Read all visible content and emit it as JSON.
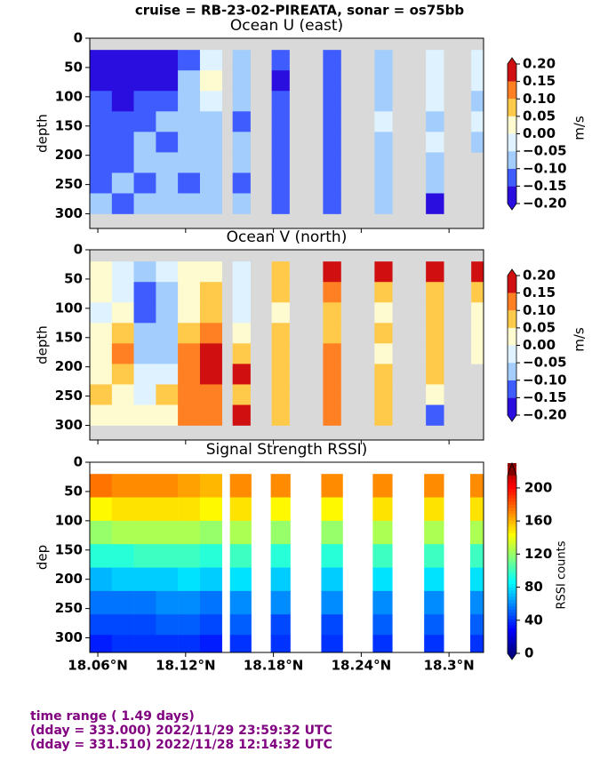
{
  "title": "cruise = RB-23-02-PIREATA,  sonar = os75bb",
  "footer": [
    "time range ( 1.49 days)",
    "(dday = 333.000) 2022/11/29 23:59:32 UTC",
    "(dday = 331.510) 2022/11/28 12:14:32 UTC"
  ],
  "chart_data": [
    {
      "type": "contour",
      "title": "Ocean U (east)",
      "ylabel": "depth",
      "colorbar_label": "m/s",
      "xlim": [
        18.0545,
        18.3236
      ],
      "xticks": [
        18.06,
        18.12,
        18.18,
        18.24,
        18.3
      ],
      "xtick_labels": false,
      "ylim": [
        0,
        325
      ],
      "y_inverted": true,
      "yticks": [
        0,
        50,
        100,
        150,
        200,
        250,
        300
      ],
      "nan_color": "#d9d9d9",
      "levels": [
        -0.2,
        -0.15,
        -0.1,
        -0.05,
        0,
        0.05,
        0.1,
        0.15,
        0.2
      ],
      "colors": [
        "#2a0ee0",
        "#3f5cff",
        "#a3cdfc",
        "#dff2ff",
        "#fffbd0",
        "#ffc94a",
        "#ff8022",
        "#d01010"
      ],
      "cticks": [
        {
          "value": -0.2,
          "label": "−0.20"
        },
        {
          "value": -0.15,
          "label": "−0.15"
        },
        {
          "value": -0.1,
          "label": "−0.10"
        },
        {
          "value": -0.05,
          "label": "−0.05"
        },
        {
          "value": 0,
          "label": "0.00"
        },
        {
          "value": 0.05,
          "label": "0.05"
        },
        {
          "value": 0.1,
          "label": "0.10"
        },
        {
          "value": 0.15,
          "label": "0.15"
        },
        {
          "value": 0.2,
          "label": "0.20"
        }
      ],
      "x_bins": [
        [
          18.0545,
          18.0696
        ],
        [
          18.0696,
          18.0846
        ],
        [
          18.0846,
          18.0997
        ],
        [
          18.0997,
          18.1147
        ],
        [
          18.1147,
          18.1298
        ],
        [
          18.1298,
          18.1448
        ],
        [
          18.1521,
          18.1642
        ],
        [
          18.1788,
          18.1909
        ],
        [
          18.2139,
          18.2261
        ],
        [
          18.2491,
          18.2612
        ],
        [
          18.2842,
          18.2964
        ],
        [
          18.3152,
          18.3236
        ]
      ],
      "depth_bins": [
        20,
        55,
        90,
        125,
        160,
        195,
        230,
        265,
        300
      ],
      "values": [
        [
          -0.17,
          -0.22,
          -0.22,
          -0.22,
          -0.12,
          -0.03,
          -0.08,
          -0.12,
          -0.13,
          -0.07,
          -0.03,
          -0.04
        ],
        [
          -0.16,
          -0.18,
          -0.2,
          -0.17,
          -0.08,
          0.02,
          -0.08,
          -0.16,
          -0.12,
          -0.07,
          -0.04,
          -0.05
        ],
        [
          -0.15,
          -0.16,
          -0.15,
          -0.12,
          -0.1,
          -0.04,
          -0.08,
          -0.12,
          -0.12,
          -0.06,
          -0.04,
          -0.06
        ],
        [
          -0.13,
          -0.14,
          -0.12,
          -0.1,
          -0.08,
          -0.06,
          -0.12,
          -0.12,
          -0.13,
          -0.04,
          -0.06,
          -0.03
        ],
        [
          -0.12,
          -0.12,
          -0.1,
          -0.12,
          -0.08,
          -0.07,
          -0.08,
          -0.13,
          -0.12,
          -0.07,
          -0.04,
          -0.06
        ],
        [
          -0.11,
          -0.13,
          -0.1,
          -0.09,
          -0.1,
          -0.08,
          -0.09,
          -0.12,
          -0.11,
          -0.06,
          -0.06,
          null
        ],
        [
          -0.12,
          -0.1,
          -0.12,
          -0.09,
          -0.12,
          -0.08,
          -0.12,
          -0.12,
          -0.12,
          -0.07,
          -0.07,
          null
        ],
        [
          -0.1,
          -0.12,
          -0.09,
          -0.1,
          -0.08,
          -0.09,
          -0.07,
          -0.12,
          -0.12,
          -0.07,
          -0.17,
          null
        ]
      ]
    },
    {
      "type": "contour",
      "title": "Ocean V (north)",
      "ylabel": "depth",
      "colorbar_label": "m/s",
      "xlim": [
        18.0545,
        18.3236
      ],
      "xticks": [
        18.06,
        18.12,
        18.18,
        18.24,
        18.3
      ],
      "xtick_labels": false,
      "ylim": [
        0,
        325
      ],
      "y_inverted": true,
      "yticks": [
        0,
        50,
        100,
        150,
        200,
        250,
        300
      ],
      "nan_color": "#d9d9d9",
      "levels": [
        -0.2,
        -0.15,
        -0.1,
        -0.05,
        0,
        0.05,
        0.1,
        0.15,
        0.2
      ],
      "colors": [
        "#2a0ee0",
        "#3f5cff",
        "#a3cdfc",
        "#dff2ff",
        "#fffbd0",
        "#ffc94a",
        "#ff8022",
        "#d01010"
      ],
      "cticks": [
        {
          "value": -0.2,
          "label": "−0.20"
        },
        {
          "value": -0.15,
          "label": "−0.15"
        },
        {
          "value": -0.1,
          "label": "−0.10"
        },
        {
          "value": -0.05,
          "label": "−0.05"
        },
        {
          "value": 0,
          "label": "0.00"
        },
        {
          "value": 0.05,
          "label": "0.05"
        },
        {
          "value": 0.1,
          "label": "0.10"
        },
        {
          "value": 0.15,
          "label": "0.15"
        },
        {
          "value": 0.2,
          "label": "0.20"
        }
      ],
      "x_bins": [
        [
          18.0545,
          18.0696
        ],
        [
          18.0696,
          18.0846
        ],
        [
          18.0846,
          18.0997
        ],
        [
          18.0997,
          18.1147
        ],
        [
          18.1147,
          18.1298
        ],
        [
          18.1298,
          18.1448
        ],
        [
          18.1521,
          18.1642
        ],
        [
          18.1788,
          18.1909
        ],
        [
          18.2139,
          18.2261
        ],
        [
          18.2491,
          18.2612
        ],
        [
          18.2842,
          18.2964
        ],
        [
          18.3152,
          18.3236
        ]
      ],
      "depth_bins": [
        20,
        55,
        90,
        125,
        160,
        195,
        230,
        265,
        300
      ],
      "values": [
        [
          0.03,
          -0.02,
          -0.1,
          -0.05,
          0.02,
          0.03,
          -0.03,
          0.06,
          0.17,
          0.17,
          0.15,
          0.17
        ],
        [
          0.02,
          -0.05,
          -0.14,
          -0.08,
          0,
          0.05,
          -0.04,
          0.06,
          0.12,
          0.08,
          0.08,
          0.07
        ],
        [
          -0.03,
          0.02,
          -0.12,
          -0.07,
          0.02,
          0.07,
          -0.02,
          0.03,
          0.08,
          0.02,
          0.07,
          0.02
        ],
        [
          0.02,
          0.06,
          -0.1,
          -0.08,
          0.05,
          0.12,
          0.03,
          0.06,
          0.08,
          0.07,
          0.08,
          0.03
        ],
        [
          0.04,
          0.1,
          -0.06,
          -0.07,
          0.1,
          0.16,
          0.08,
          0.06,
          0.12,
          0.04,
          0.07,
          0.03
        ],
        [
          0.02,
          0.08,
          -0.04,
          -0.03,
          0.12,
          0.15,
          0.15,
          0.06,
          0.1,
          0.07,
          0.07,
          null
        ],
        [
          0.05,
          0.03,
          -0.02,
          0.06,
          0.12,
          0.13,
          0.08,
          0.07,
          0.1,
          0.08,
          0.04,
          null
        ],
        [
          0.03,
          0.02,
          0,
          0.04,
          0.12,
          0.11,
          0.17,
          0.06,
          0.1,
          0.08,
          -0.12,
          null
        ]
      ]
    },
    {
      "type": "heatmap",
      "title": "Signal Strength RSSI)",
      "ylabel": "dep",
      "colorbar_label": "RSSI counts",
      "xlim": [
        18.0545,
        18.3236
      ],
      "xticks": [
        {
          "value": 18.06,
          "label": "18.06°N"
        },
        {
          "value": 18.12,
          "label": "18.12°N"
        },
        {
          "value": 18.18,
          "label": "18.18°N"
        },
        {
          "value": 18.24,
          "label": "18.24°N"
        },
        {
          "value": 18.3,
          "label": "18.3°N"
        }
      ],
      "xtick_labels": true,
      "ylim": [
        0,
        325
      ],
      "y_inverted": true,
      "yticks": [
        0,
        50,
        100,
        150,
        200,
        250,
        300
      ],
      "nan_color": "#ffffff",
      "colormap": "jet",
      "clim": [
        0,
        230
      ],
      "cticks": [
        0,
        40,
        80,
        120,
        160,
        200
      ],
      "x_bins": [
        [
          18.0545,
          18.0696
        ],
        [
          18.0696,
          18.0846
        ],
        [
          18.0846,
          18.0997
        ],
        [
          18.0997,
          18.1147
        ],
        [
          18.1147,
          18.1298
        ],
        [
          18.1298,
          18.1448
        ],
        [
          18.1503,
          18.1648
        ],
        [
          18.1782,
          18.1915
        ],
        [
          18.2127,
          18.2273
        ],
        [
          18.2479,
          18.2612
        ],
        [
          18.283,
          18.2964
        ],
        [
          18.3145,
          18.3236
        ]
      ],
      "depth_bins": [
        20,
        60,
        100,
        140,
        180,
        220,
        260,
        295,
        325
      ],
      "values": [
        [
          175,
          170,
          170,
          170,
          165,
          160,
          170,
          170,
          170,
          170,
          170,
          170
        ],
        [
          145,
          150,
          150,
          150,
          150,
          145,
          150,
          145,
          145,
          150,
          150,
          150
        ],
        [
          120,
          125,
          125,
          125,
          125,
          120,
          125,
          120,
          120,
          125,
          125,
          125
        ],
        [
          95,
          95,
          100,
          100,
          100,
          95,
          100,
          95,
          95,
          100,
          100,
          100
        ],
        [
          70,
          75,
          75,
          75,
          80,
          75,
          80,
          75,
          75,
          80,
          80,
          80
        ],
        [
          55,
          55,
          55,
          60,
          60,
          55,
          60,
          60,
          60,
          60,
          60,
          60
        ],
        [
          45,
          45,
          45,
          50,
          50,
          45,
          50,
          45,
          45,
          50,
          50,
          50
        ],
        [
          35,
          40,
          40,
          40,
          40,
          35,
          40,
          40,
          40,
          40,
          40,
          40
        ]
      ]
    }
  ]
}
